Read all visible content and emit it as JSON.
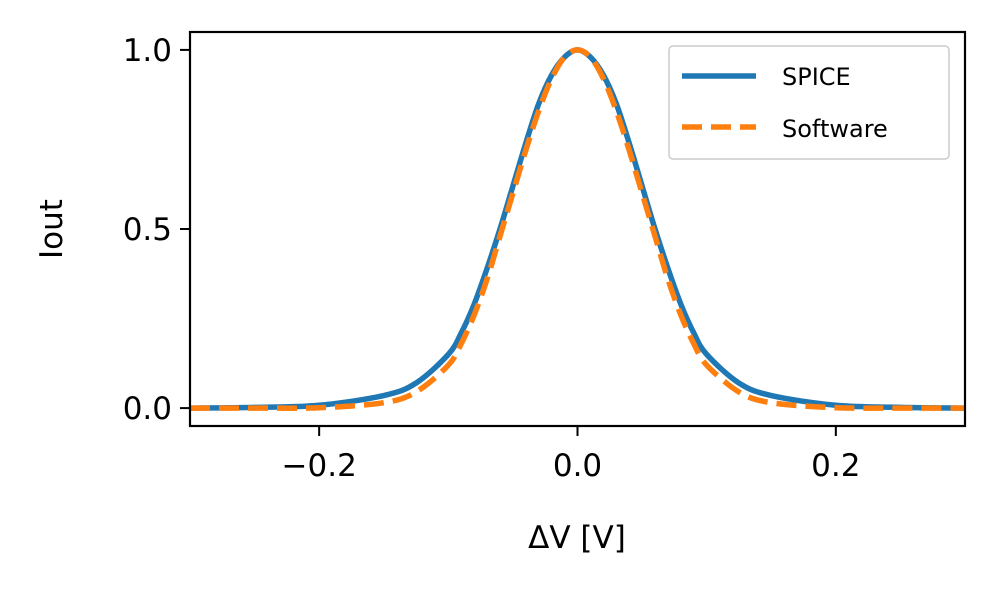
{
  "chart_data": {
    "type": "line",
    "title": "",
    "xlabel": "ΔV [V]",
    "ylabel": "Iout",
    "xlim": [
      -0.3,
      0.3
    ],
    "ylim": [
      -0.05,
      1.05
    ],
    "xticks": [
      -0.2,
      0.0,
      0.2
    ],
    "xtick_labels": [
      "−0.2",
      "0.0",
      "0.2"
    ],
    "yticks": [
      0.0,
      0.5,
      1.0
    ],
    "ytick_labels": [
      "0.0",
      "0.5",
      "1.0"
    ],
    "grid": false,
    "legend_position": "top-right",
    "series": [
      {
        "name": "SPICE",
        "color": "#1f77b4",
        "style": "solid",
        "x": [
          -0.3,
          -0.25,
          -0.2,
          -0.15,
          -0.125,
          -0.1,
          -0.09,
          -0.08,
          -0.07,
          -0.06,
          -0.05,
          -0.04,
          -0.03,
          -0.02,
          -0.01,
          0.0,
          0.01,
          0.02,
          0.03,
          0.04,
          0.05,
          0.06,
          0.07,
          0.08,
          0.09,
          0.1,
          0.125,
          0.15,
          0.2,
          0.25,
          0.3
        ],
        "values": [
          0.0,
          0.002,
          0.008,
          0.035,
          0.07,
          0.15,
          0.21,
          0.29,
          0.39,
          0.5,
          0.62,
          0.74,
          0.85,
          0.93,
          0.98,
          1.0,
          0.98,
          0.93,
          0.85,
          0.74,
          0.62,
          0.5,
          0.39,
          0.29,
          0.21,
          0.15,
          0.07,
          0.035,
          0.008,
          0.002,
          0.0
        ]
      },
      {
        "name": "Software",
        "color": "#ff7f0e",
        "style": "dashed",
        "x": [
          -0.3,
          -0.25,
          -0.2,
          -0.15,
          -0.125,
          -0.1,
          -0.09,
          -0.08,
          -0.07,
          -0.06,
          -0.05,
          -0.04,
          -0.03,
          -0.02,
          -0.01,
          0.0,
          0.01,
          0.02,
          0.03,
          0.04,
          0.05,
          0.06,
          0.07,
          0.08,
          0.09,
          0.1,
          0.125,
          0.15,
          0.2,
          0.25,
          0.3
        ],
        "values": [
          0.0,
          0.0,
          0.001,
          0.015,
          0.045,
          0.12,
          0.18,
          0.26,
          0.36,
          0.48,
          0.6,
          0.72,
          0.83,
          0.92,
          0.98,
          1.0,
          0.98,
          0.92,
          0.83,
          0.72,
          0.6,
          0.48,
          0.36,
          0.26,
          0.18,
          0.12,
          0.045,
          0.015,
          0.001,
          0.0,
          0.0
        ]
      }
    ]
  }
}
